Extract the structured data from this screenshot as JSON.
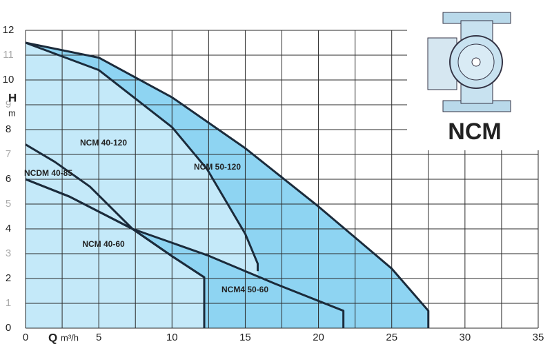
{
  "chart_data": {
    "type": "line",
    "x_label": "Q",
    "x_unit": "m³/h",
    "y_label": "H",
    "y_unit": "m",
    "pump_label": "NCM",
    "xlim": [
      0,
      35
    ],
    "ylim": [
      0,
      12
    ],
    "xticks": [
      0,
      5,
      10,
      15,
      20,
      25,
      30,
      35
    ],
    "yticks": [
      0,
      1,
      2,
      3,
      4,
      5,
      6,
      7,
      8,
      9,
      10,
      11,
      12
    ],
    "grid": true,
    "series": [
      {
        "name": "NCM 50-120",
        "color": "#8ed4f2",
        "x": [
          0,
          5,
          10,
          15,
          20,
          25,
          27.5,
          27.5
        ],
        "values": [
          11.5,
          10.9,
          9.3,
          7.25,
          4.9,
          2.4,
          0.7,
          0
        ]
      },
      {
        "name": "NCM 40-120",
        "color": "#c4e9f9",
        "x": [
          0,
          5,
          10,
          12.4,
          15,
          15.85,
          15.85
        ],
        "values": [
          11.5,
          10.4,
          8.1,
          6.4,
          3.8,
          2.6,
          2.3
        ]
      },
      {
        "name": "NCM4 50-60",
        "color": "#8ed4f2",
        "x": [
          0,
          3,
          7.3,
          12.4,
          17,
          21.7,
          21.7
        ],
        "values": [
          6,
          5.3,
          4,
          2.94,
          1.8,
          0.7,
          0
        ]
      },
      {
        "name": "NCDM 40-85",
        "color": "#c4e9f9",
        "x": [
          0,
          2,
          4.4,
          7.3,
          10,
          12.2,
          12.2
        ],
        "values": [
          7.4,
          6.7,
          5.7,
          4,
          2.9,
          2.05,
          0
        ]
      },
      {
        "name": "NCM 40-60",
        "color": "#c4e9f9",
        "x": [
          0,
          3,
          7.3,
          10,
          12.2,
          12.2
        ],
        "values": [
          6,
          5.3,
          4,
          2.9,
          2.05,
          0
        ]
      }
    ]
  }
}
